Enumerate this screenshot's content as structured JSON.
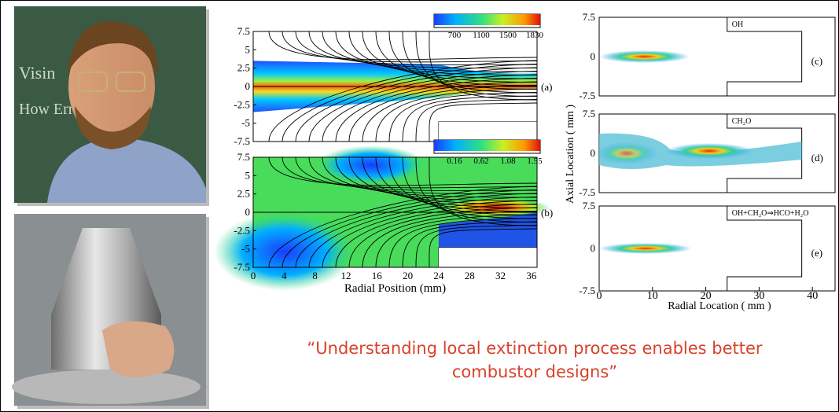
{
  "left_figure": {
    "y_ticks": [
      "7.5",
      "5",
      "2.5",
      "0",
      "-2.5",
      "-5",
      "-7.5"
    ],
    "x_ticks": [
      "0",
      "4",
      "8",
      "12",
      "16",
      "20",
      "24",
      "28",
      "32",
      "36"
    ],
    "x_label": "Radial Position (mm)",
    "panels": [
      {
        "label": "(a)",
        "colorbar_labels": [
          "700",
          "1100",
          "1500",
          "1830"
        ]
      },
      {
        "label": "(b)",
        "colorbar_labels": [
          "0.16",
          "0.62",
          "1.08",
          "1.55"
        ]
      }
    ]
  },
  "right_figure": {
    "y_label": "Axial Location ( mm )",
    "x_label": "Radial Location ( mm )",
    "x_ticks": [
      "0",
      "10",
      "20",
      "30",
      "40"
    ],
    "panels": [
      {
        "label": "(c)",
        "species": "OH",
        "y_ticks": [
          "7.5",
          "0",
          "-7.5"
        ]
      },
      {
        "label": "(d)",
        "species": "CH₂O",
        "y_ticks": [
          "7.5",
          "0",
          "-7.5"
        ]
      },
      {
        "label": "(e)",
        "species": "OH+CH₂O⇒HCO+H₂O",
        "y_ticks": [
          "7.5",
          "0",
          "-7.5"
        ]
      }
    ]
  },
  "quote": [
    "“Understanding local extinction process enables better",
    "combustor designs”"
  ]
}
